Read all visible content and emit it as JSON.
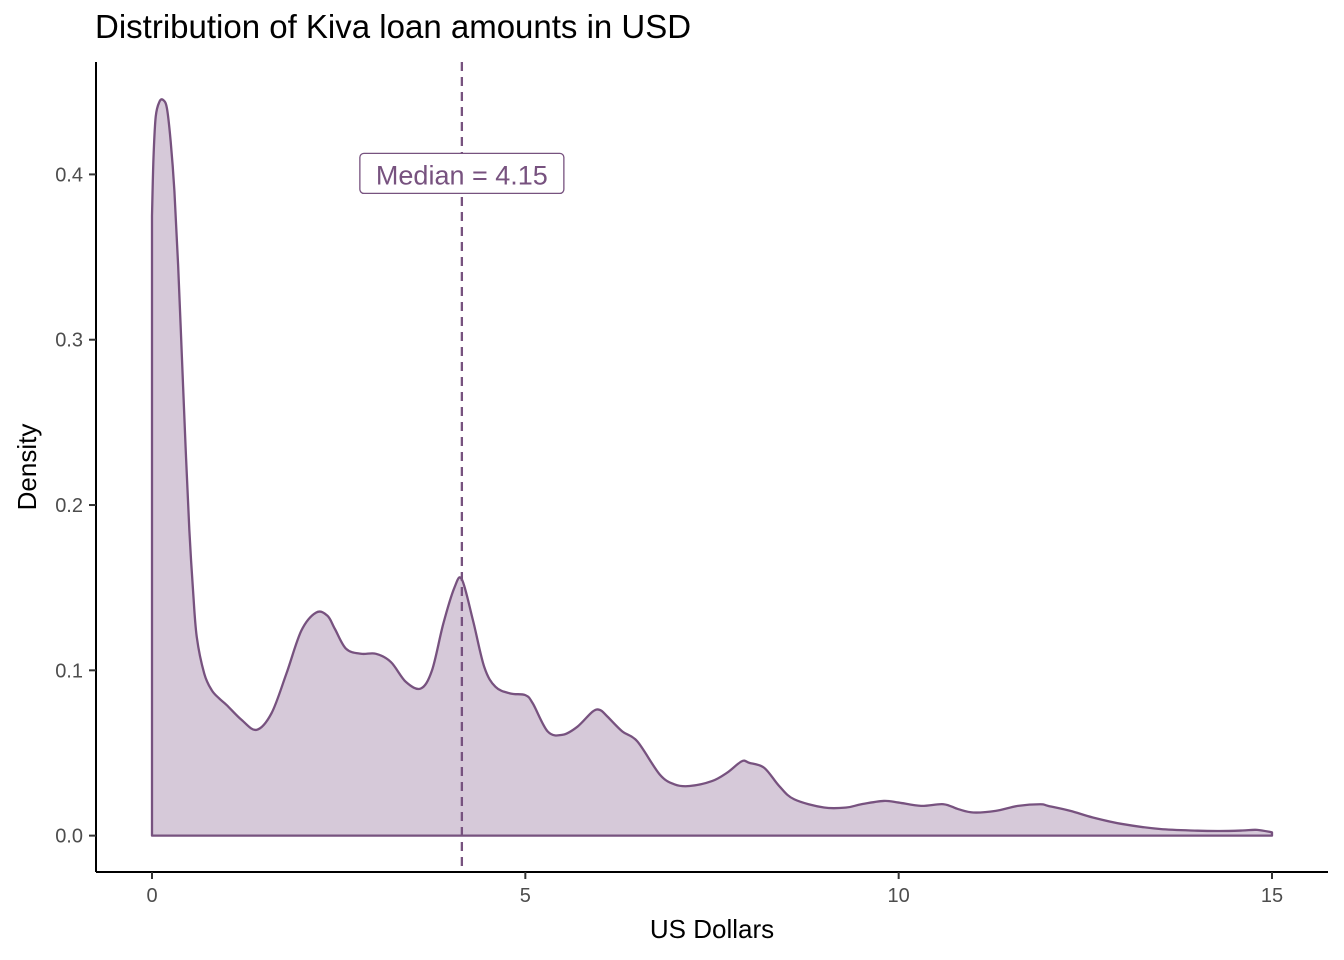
{
  "chart_data": {
    "type": "area",
    "title": "Distribution of Kiva loan amounts in USD",
    "xlabel": "US Dollars",
    "ylabel": "Density",
    "xlim": [
      -0.75,
      15.75
    ],
    "ylim": [
      -0.022,
      0.468
    ],
    "x_ticks": [
      0,
      5,
      10,
      15
    ],
    "y_ticks": [
      0.0,
      0.1,
      0.2,
      0.3,
      0.4
    ],
    "x_tick_labels": [
      "0",
      "5",
      "10",
      "15"
    ],
    "y_tick_labels": [
      "0.0",
      "0.1",
      "0.2",
      "0.3",
      "0.4"
    ],
    "grid": false,
    "colors": {
      "line": "#77527f",
      "fill": "#d6c9d9",
      "axis": "#000000",
      "tick_text": "#4d4d4d"
    },
    "median_line": {
      "x": 4.15,
      "style": "dashed"
    },
    "annotation": {
      "text": "Median = 4.15",
      "x": 4.15,
      "y": 0.4
    },
    "series": [
      {
        "x": [
          0,
          0.02,
          0.05,
          0.1,
          0.15,
          0.2,
          0.25,
          0.3,
          0.35,
          0.4,
          0.45,
          0.5,
          0.55,
          0.6,
          0.7,
          0.8,
          0.9,
          1.0,
          1.2,
          1.4,
          1.6,
          1.8,
          2.0,
          2.2,
          2.35,
          2.45,
          2.6,
          2.8,
          3.0,
          3.2,
          3.4,
          3.6,
          3.75,
          3.9,
          4.05,
          4.15,
          4.3,
          4.45,
          4.6,
          4.8,
          5.0,
          5.1,
          5.3,
          5.5,
          5.7,
          5.9,
          6.0,
          6.1,
          6.3,
          6.5,
          6.8,
          7.0,
          7.2,
          7.5,
          7.7,
          7.9,
          8.0,
          8.2,
          8.4,
          8.6,
          9.0,
          9.3,
          9.5,
          9.8,
          10.0,
          10.3,
          10.6,
          10.8,
          11.0,
          11.3,
          11.6,
          11.9,
          12.0,
          12.3,
          12.6,
          13.0,
          13.5,
          14.0,
          14.3,
          14.6,
          14.8,
          15.0
        ],
        "y": [
          0.375,
          0.41,
          0.435,
          0.444,
          0.445,
          0.44,
          0.42,
          0.39,
          0.345,
          0.29,
          0.235,
          0.185,
          0.148,
          0.12,
          0.098,
          0.088,
          0.083,
          0.079,
          0.07,
          0.064,
          0.074,
          0.098,
          0.124,
          0.135,
          0.133,
          0.125,
          0.113,
          0.11,
          0.11,
          0.105,
          0.093,
          0.089,
          0.1,
          0.128,
          0.15,
          0.155,
          0.13,
          0.102,
          0.09,
          0.086,
          0.085,
          0.08,
          0.063,
          0.061,
          0.066,
          0.075,
          0.076,
          0.072,
          0.063,
          0.057,
          0.037,
          0.031,
          0.03,
          0.033,
          0.038,
          0.045,
          0.044,
          0.041,
          0.03,
          0.022,
          0.017,
          0.017,
          0.019,
          0.021,
          0.02,
          0.018,
          0.019,
          0.016,
          0.014,
          0.015,
          0.018,
          0.019,
          0.018,
          0.015,
          0.011,
          0.007,
          0.004,
          0.003,
          0.0028,
          0.0031,
          0.0035,
          0.002
        ]
      }
    ]
  }
}
